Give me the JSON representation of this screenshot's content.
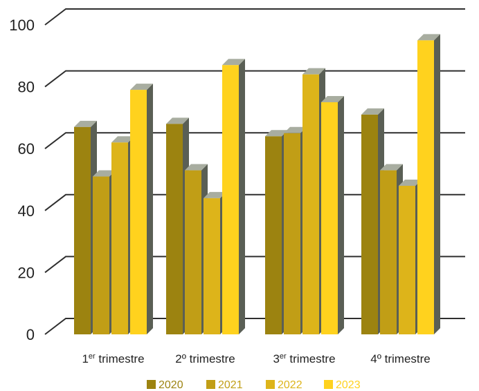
{
  "chart_data": {
    "type": "bar",
    "categories": [
      {
        "prefix": "1",
        "sup": "er",
        "suffix": " trimestre"
      },
      {
        "prefix": "2º trimestre",
        "sup": "",
        "suffix": ""
      },
      {
        "prefix": "3",
        "sup": "er",
        "suffix": " trimestre"
      },
      {
        "prefix": "4º trimestre",
        "sup": "",
        "suffix": ""
      }
    ],
    "series": [
      {
        "name": "2020",
        "color": "#9C8310",
        "values": [
          67,
          68,
          64,
          71
        ]
      },
      {
        "name": "2021",
        "color": "#C19E16",
        "values": [
          51,
          53,
          65,
          53
        ]
      },
      {
        "name": "2022",
        "color": "#DDB41A",
        "values": [
          62,
          44,
          84,
          48
        ]
      },
      {
        "name": "2023",
        "color": "#FFD21E",
        "values": [
          79,
          87,
          75,
          95
        ]
      }
    ],
    "ylim": [
      0,
      100
    ],
    "yticks": [
      0,
      20,
      40,
      60,
      80,
      100
    ],
    "grid": true,
    "legend": "bottom",
    "title": "",
    "xlabel": "",
    "ylabel": ""
  }
}
